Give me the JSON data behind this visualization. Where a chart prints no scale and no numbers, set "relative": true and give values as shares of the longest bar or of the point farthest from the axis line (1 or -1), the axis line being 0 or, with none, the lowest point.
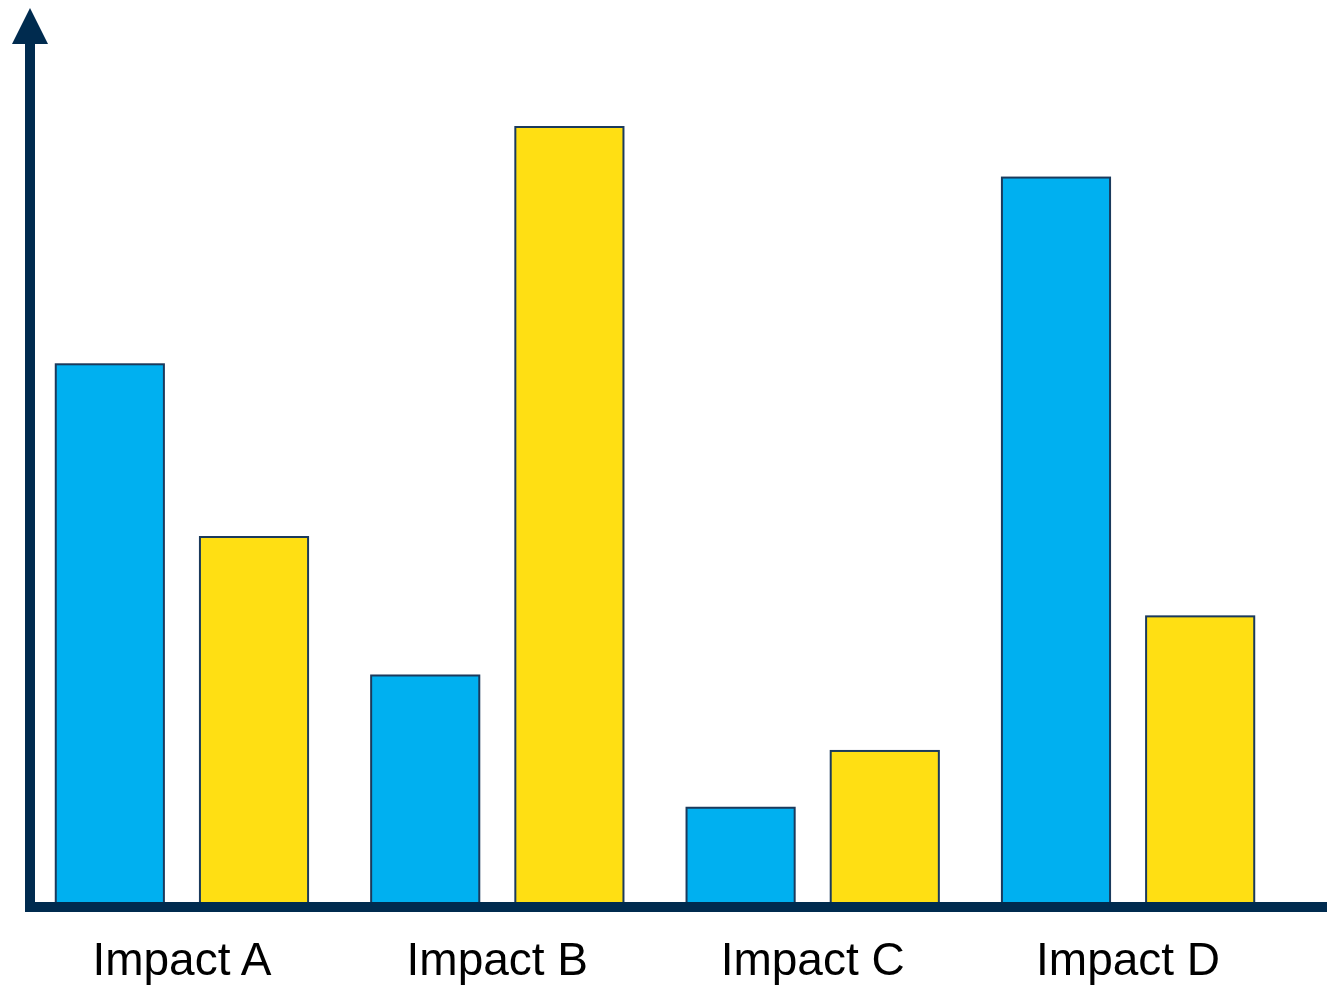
{
  "chart_data": {
    "type": "bar",
    "relative": true,
    "categories": [
      "Impact A",
      "Impact B",
      "Impact C",
      "Impact D"
    ],
    "series": [
      {
        "color": "#00b0f0",
        "values": [
          0.695,
          0.295,
          0.125,
          0.935
        ]
      },
      {
        "color": "#ffdf13",
        "values": [
          0.473,
          1,
          0.198,
          0.371
        ]
      }
    ],
    "grid": false,
    "legend": false
  }
}
